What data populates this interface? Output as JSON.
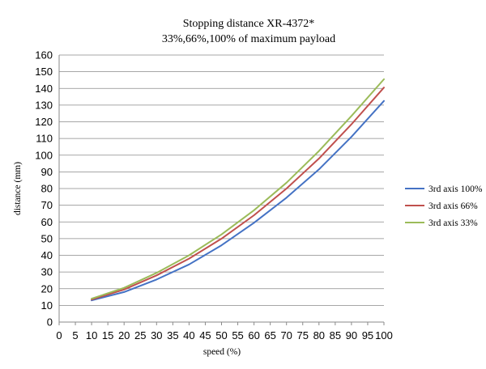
{
  "chart_data": {
    "type": "line",
    "title": "Stopping distance  XR-4372*",
    "subtitle": "33%,66%,100% of maximum payload",
    "xlabel": "speed (%)",
    "ylabel": "distance (mm)",
    "xlim": [
      0,
      100
    ],
    "ylim": [
      0,
      160
    ],
    "x_ticks": [
      0,
      5,
      10,
      15,
      20,
      25,
      30,
      35,
      40,
      45,
      50,
      55,
      60,
      65,
      70,
      75,
      80,
      85,
      90,
      95,
      100
    ],
    "y_ticks": [
      0,
      10,
      20,
      30,
      40,
      50,
      60,
      70,
      80,
      90,
      100,
      110,
      120,
      130,
      140,
      150,
      160
    ],
    "grid": true,
    "legend_position": "right",
    "x": [
      10,
      20,
      30,
      40,
      50,
      60,
      70,
      80,
      90,
      100
    ],
    "series": [
      {
        "name": "3rd axis 100%",
        "color": "#4472c4",
        "values": [
          13,
          18,
          25.5,
          34.5,
          46,
          59.5,
          74.5,
          91.5,
          111,
          132.5
        ]
      },
      {
        "name": "3rd axis 66%",
        "color": "#c0504d",
        "values": [
          13.5,
          19.5,
          28,
          38,
          50,
          64,
          80,
          98,
          118.5,
          140.5
        ]
      },
      {
        "name": "3rd axis 33%",
        "color": "#9bbb59",
        "values": [
          14,
          20.5,
          29.5,
          40,
          52.5,
          67,
          83.5,
          102.5,
          123.5,
          145.5
        ]
      }
    ]
  }
}
